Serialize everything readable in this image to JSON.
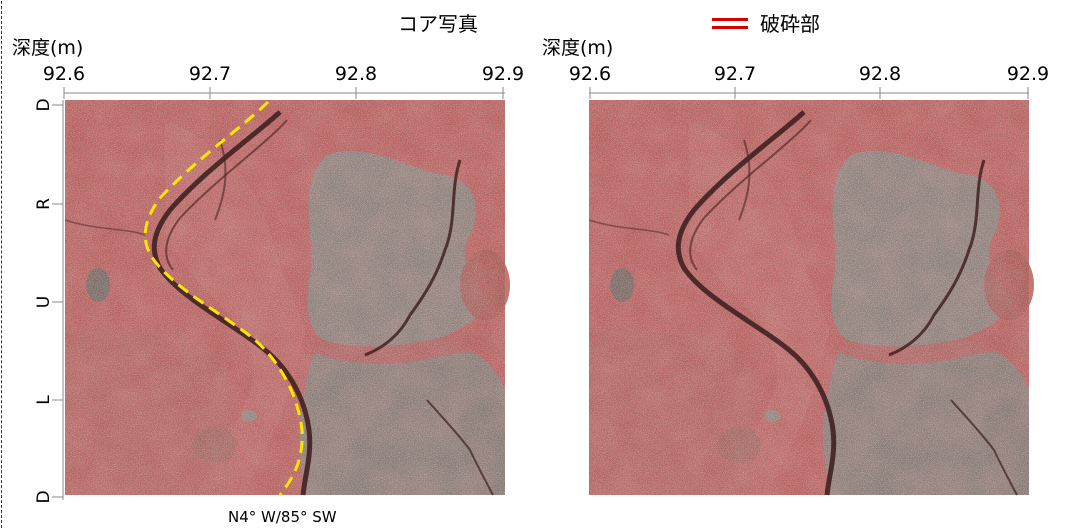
{
  "header": {
    "title": "コア写真",
    "legend_label": "破砕部",
    "legend_color": "#d60000"
  },
  "panels": [
    {
      "id": "left",
      "axis_title": "深度(m)",
      "ticks": [
        "92.6",
        "92.7",
        "92.8",
        "92.9"
      ],
      "has_trace": true,
      "caption": "N4° W/85° SW"
    },
    {
      "id": "right",
      "axis_title": "深度(m)",
      "ticks": [
        "92.6",
        "92.7",
        "92.8",
        "92.9"
      ],
      "has_trace": false
    }
  ],
  "orientation_labels": [
    "D",
    "R",
    "U",
    "L",
    "D"
  ],
  "trace": {
    "color": "#ffe600",
    "style": "dashed"
  },
  "colors": {
    "rock_red": "#c9605e",
    "rock_grey": "#8f8d86",
    "fracture": "#3a1c1c"
  }
}
